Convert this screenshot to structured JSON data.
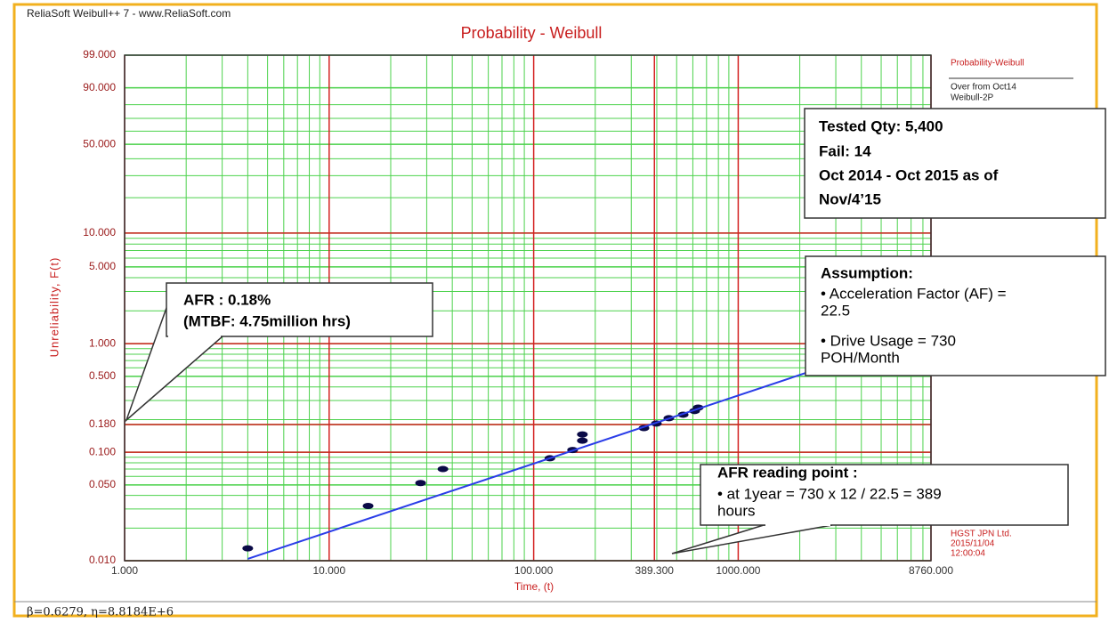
{
  "app_title": "ReliaSoft Weibull++ 7 - www.ReliaSoft.com",
  "footer": "β=0.6279, η=8.8184E+6",
  "side_panel": {
    "title": "Probability-Weibull",
    "lines": [
      "Over from Oct14",
      "Weibull-2P"
    ]
  },
  "stamp": [
    "HGST JPN Ltd.",
    "2015/11/04",
    "12:00:04"
  ],
  "annotations": [
    {
      "lines": [
        "Tested Qty: 5,400",
        "Fail: 14",
        "Oct 2014 - Oct 2015 as of",
        "Nov/4’15"
      ]
    },
    {
      "lines": [
        "Assumption:",
        "• Acceleration Factor (AF) =",
        "22.5",
        "• Drive Usage = 730",
        "POH/Month"
      ]
    },
    {
      "lines": [
        "AFR : 0.18%",
        "(MTBF: 4.75million hrs)"
      ]
    },
    {
      "lines": [
        "AFR reading point :",
        "• at 1year = 730 x 12 / 22.5 = 389",
        "hours"
      ]
    }
  ],
  "chart_data": {
    "type": "scatter",
    "title": "Probability - Weibull",
    "x_label": "Time, (t)",
    "y_label": "Unreliability, F(t)",
    "xscale": "log",
    "yscale": "weibull",
    "xlim": [
      1,
      8760
    ],
    "ylim": [
      0.01,
      99
    ],
    "xticks": [
      {
        "value": 1,
        "label": "1.000"
      },
      {
        "value": 10,
        "label": "10.000"
      },
      {
        "value": 100,
        "label": "100.000"
      },
      {
        "value": 389.3,
        "label": "389.300"
      },
      {
        "value": 1000,
        "label": "1000.000"
      },
      {
        "value": 8760,
        "label": "8760.000"
      }
    ],
    "yticks": [
      {
        "value": 0.01,
        "label": "0.010"
      },
      {
        "value": 0.05,
        "label": "0.050"
      },
      {
        "value": 0.1,
        "label": "0.100"
      },
      {
        "value": 0.18,
        "label": "0.180"
      },
      {
        "value": 0.5,
        "label": "0.500"
      },
      {
        "value": 1,
        "label": "1.000"
      },
      {
        "value": 5,
        "label": "5.000"
      },
      {
        "value": 10,
        "label": "10.000"
      },
      {
        "value": 50,
        "label": "50.000"
      },
      {
        "value": 90,
        "label": "90.000"
      },
      {
        "value": 99,
        "label": "99.000"
      }
    ],
    "ygrid_red": [
      0.01,
      0.1,
      0.18,
      1,
      10
    ],
    "major_color": "#d42222",
    "minor_color": "#4cd24c",
    "series": [
      {
        "mode": "markers",
        "color": "#0a0a46",
        "x": [
          4,
          15.5,
          28,
          36,
          120,
          155,
          173,
          173,
          346,
          398,
          458,
          538,
          612,
          637
        ],
        "values": [
          0.013,
          0.032,
          0.052,
          0.07,
          0.088,
          0.105,
          0.128,
          0.146,
          0.167,
          0.184,
          0.206,
          0.222,
          0.24,
          0.258
        ]
      },
      {
        "mode": "line",
        "color": "#2a3de8",
        "x": [
          4,
          8760
        ],
        "values": [
          0.0104,
          1.3
        ]
      }
    ]
  }
}
